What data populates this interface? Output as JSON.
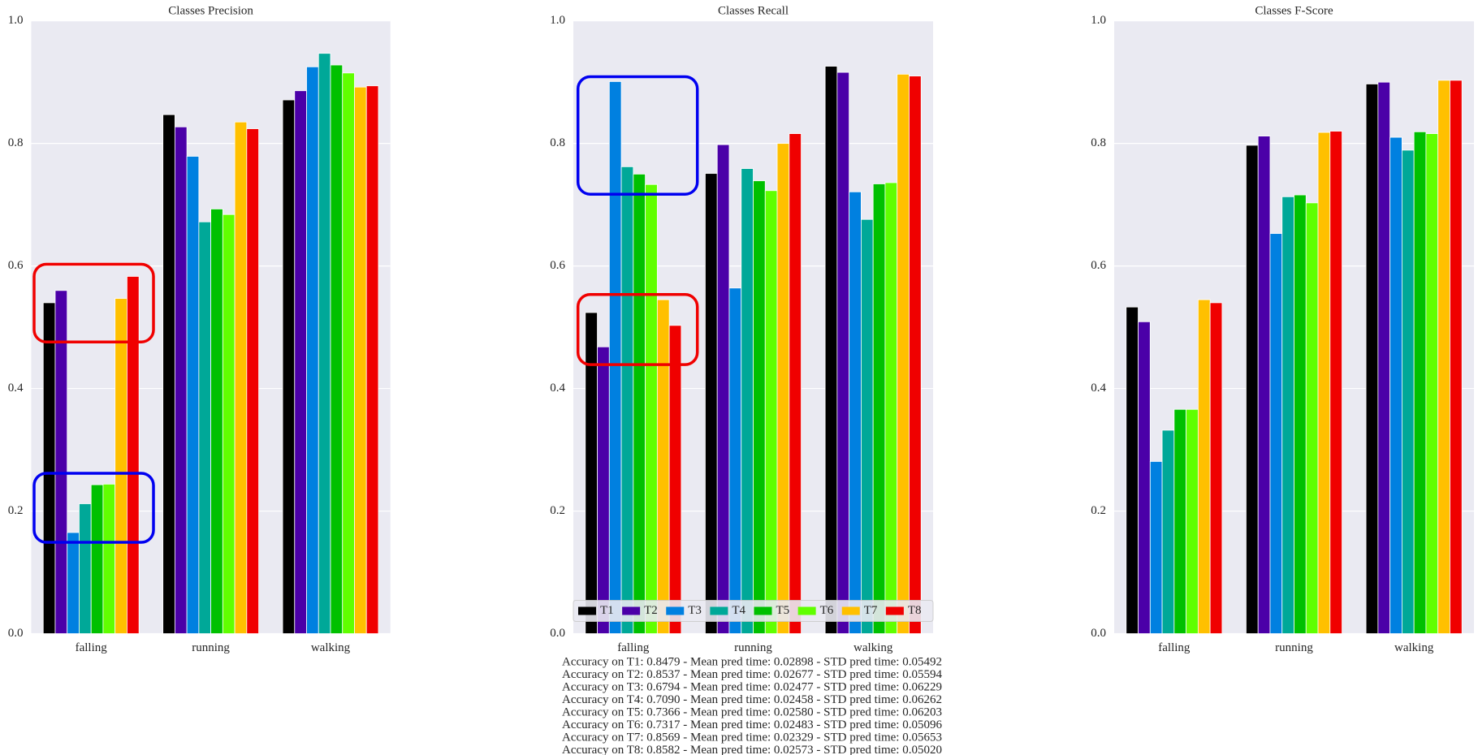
{
  "chart_data": [
    {
      "type": "bar",
      "title": "Classes Precision",
      "categories": [
        "falling",
        "running",
        "walking"
      ],
      "ylim": [
        0,
        1.0
      ],
      "yticks": [
        {
          "value": 0,
          "label": "0.0"
        },
        0.2,
        0.4,
        0.6,
        0.8,
        {
          "value": 1,
          "label": "1.0"
        }
      ],
      "grid": true,
      "series": [
        {
          "color": "#000000",
          "values": [
            0.54,
            0.847,
            0.871
          ]
        },
        {
          "color": "#4b00a8",
          "values": [
            0.56,
            0.827,
            0.886
          ]
        },
        {
          "color": "#0080e0",
          "values": [
            0.165,
            0.779,
            0.925
          ]
        },
        {
          "color": "#00a898",
          "values": [
            0.212,
            0.672,
            0.947
          ]
        },
        {
          "color": "#00c000",
          "values": [
            0.243,
            0.693,
            0.928
          ]
        },
        {
          "color": "#60ff00",
          "values": [
            0.244,
            0.684,
            0.915
          ]
        },
        {
          "color": "#ffc000",
          "values": [
            0.547,
            0.835,
            0.892
          ]
        },
        {
          "color": "#f00000",
          "values": [
            0.583,
            0.824,
            0.894
          ]
        }
      ]
    },
    {
      "type": "bar",
      "title": "Classes Recall",
      "categories": [
        "falling",
        "running",
        "walking"
      ],
      "ylim": [
        0,
        1.0
      ],
      "yticks": [
        {
          "value": 0,
          "label": "0.0"
        },
        0.2,
        0.4,
        0.6,
        0.8,
        {
          "value": 1,
          "label": "1.0"
        }
      ],
      "grid": true,
      "legend": "lower center",
      "series": [
        {
          "name": "T1",
          "color": "#000000",
          "values": [
            0.524,
            0.751,
            0.926
          ]
        },
        {
          "name": "T2",
          "color": "#4b00a8",
          "values": [
            0.468,
            0.798,
            0.916
          ]
        },
        {
          "name": "T3",
          "color": "#0080e0",
          "values": [
            0.901,
            0.564,
            0.721
          ]
        },
        {
          "name": "T4",
          "color": "#00a898",
          "values": [
            0.762,
            0.759,
            0.676
          ]
        },
        {
          "name": "T5",
          "color": "#00c000",
          "values": [
            0.75,
            0.739,
            0.734
          ]
        },
        {
          "name": "T6",
          "color": "#60ff00",
          "values": [
            0.733,
            0.723,
            0.736
          ]
        },
        {
          "name": "T7",
          "color": "#ffc000",
          "values": [
            0.545,
            0.8,
            0.913
          ]
        },
        {
          "name": "T8",
          "color": "#f00000",
          "values": [
            0.503,
            0.816,
            0.91
          ]
        }
      ]
    },
    {
      "type": "bar",
      "title": "Classes F-Score",
      "categories": [
        "falling",
        "running",
        "walking"
      ],
      "ylim": [
        0,
        1.0
      ],
      "yticks": [
        {
          "value": 0,
          "label": "0.0"
        },
        0.2,
        0.4,
        0.6,
        0.8,
        {
          "value": 1,
          "label": "1.0"
        }
      ],
      "grid": true,
      "series": [
        {
          "color": "#000000",
          "values": [
            0.533,
            0.797,
            0.897
          ]
        },
        {
          "color": "#4b00a8",
          "values": [
            0.509,
            0.812,
            0.9
          ]
        },
        {
          "color": "#0080e0",
          "values": [
            0.281,
            0.653,
            0.81
          ]
        },
        {
          "color": "#00a898",
          "values": [
            0.332,
            0.713,
            0.789
          ]
        },
        {
          "color": "#00c000",
          "values": [
            0.366,
            0.716,
            0.819
          ]
        },
        {
          "color": "#60ff00",
          "values": [
            0.366,
            0.703,
            0.816
          ]
        },
        {
          "color": "#ffc000",
          "values": [
            0.545,
            0.818,
            0.903
          ]
        },
        {
          "color": "#f00000",
          "values": [
            0.54,
            0.82,
            0.903
          ]
        }
      ]
    }
  ],
  "accuracy_report": [
    "Accuracy on T1: 0.8479 - Mean pred time: 0.02898 - STD pred time: 0.05492",
    "Accuracy on T2: 0.8537 - Mean pred time: 0.02677 - STD pred time: 0.05594",
    "Accuracy on T3: 0.6794 - Mean pred time: 0.02477 - STD pred time: 0.06229",
    "Accuracy on T4: 0.7090 - Mean pred time: 0.02458 - STD pred time: 0.06262",
    "Accuracy on T5: 0.7366 - Mean pred time: 0.02580 - STD pred time: 0.06203",
    "Accuracy on T6: 0.7317 - Mean pred time: 0.02483 - STD pred time: 0.05096",
    "Accuracy on T7: 0.8569 - Mean pred time: 0.02329 - STD pred time: 0.05653",
    "Accuracy on T8: 0.8582 - Mean pred time: 0.02573 - STD pred time: 0.05020"
  ]
}
